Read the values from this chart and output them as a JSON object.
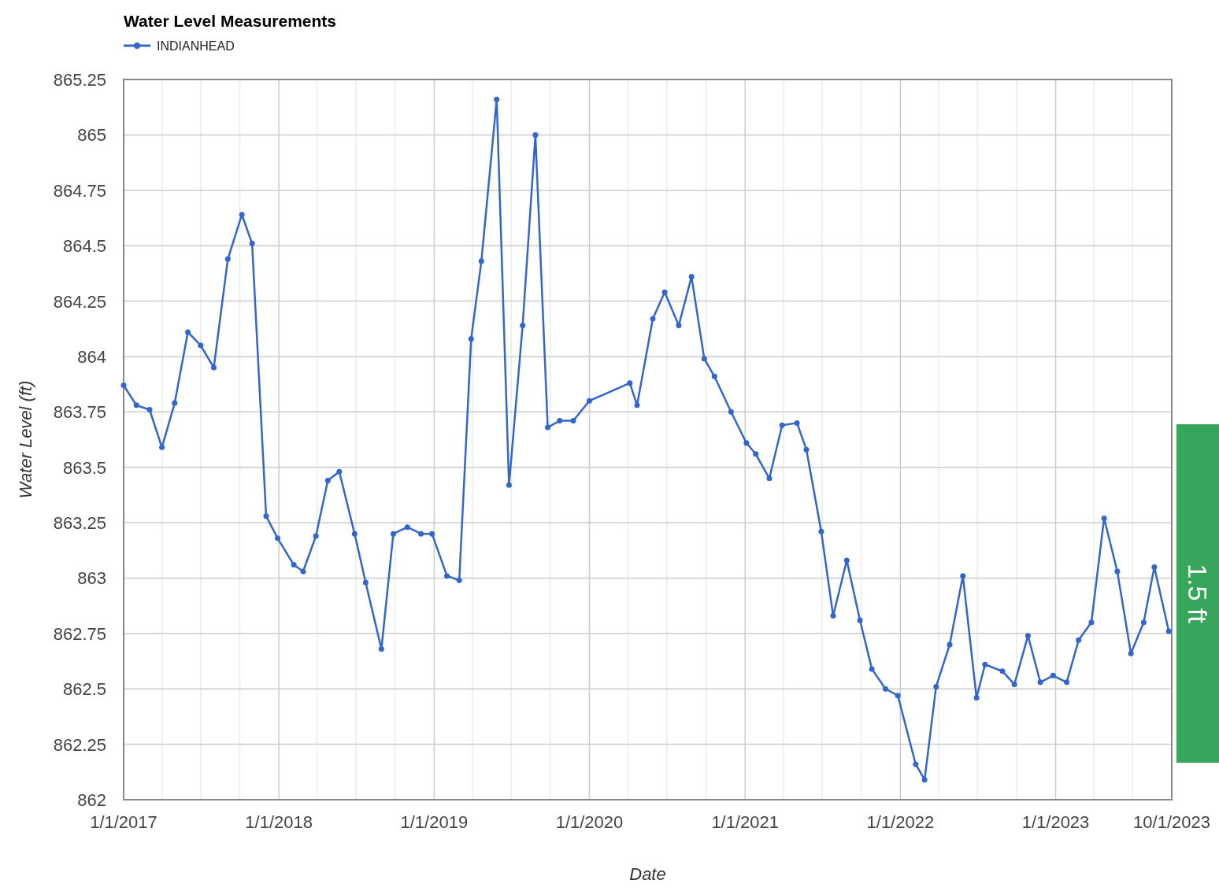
{
  "chart_data": {
    "type": "line",
    "title": "Water Level Measurements",
    "xlabel": "Date",
    "ylabel": "Water Level (ft)",
    "annotations": [
      "1.5 ft"
    ],
    "x": [
      "2017-01-01",
      "2017-01-31",
      "2017-03-03",
      "2017-04-01",
      "2017-05-01",
      "2017-06-01",
      "2017-07-01",
      "2017-08-01",
      "2017-09-03",
      "2017-10-06",
      "2017-10-30",
      "2017-12-02",
      "2017-12-29",
      "2018-02-05",
      "2018-02-27",
      "2018-03-29",
      "2018-04-26",
      "2018-05-23",
      "2018-06-28",
      "2018-07-24",
      "2018-08-30",
      "2018-09-27",
      "2018-10-30",
      "2018-12-01",
      "2018-12-27",
      "2019-01-31",
      "2019-03-01",
      "2019-03-29",
      "2019-04-22",
      "2019-05-28",
      "2019-06-26",
      "2019-07-28",
      "2019-08-27",
      "2019-09-25",
      "2019-10-23",
      "2019-11-24",
      "2020-01-01",
      "2020-04-05",
      "2020-04-22",
      "2020-05-29",
      "2020-06-26",
      "2020-07-29",
      "2020-08-28",
      "2020-09-27",
      "2020-10-21",
      "2020-11-29",
      "2021-01-04",
      "2021-01-26",
      "2021-02-27",
      "2021-03-29",
      "2021-05-03",
      "2021-05-25",
      "2021-06-29",
      "2021-07-27",
      "2021-08-28",
      "2021-09-28",
      "2021-10-26",
      "2021-11-27",
      "2021-12-26",
      "2022-02-06",
      "2022-02-27",
      "2022-03-26",
      "2022-04-27",
      "2022-05-28",
      "2022-06-29",
      "2022-07-19",
      "2022-08-29",
      "2022-09-26",
      "2022-10-28",
      "2022-11-26",
      "2022-12-26",
      "2023-01-27",
      "2023-02-24",
      "2023-03-26",
      "2023-04-25",
      "2023-05-26",
      "2023-06-27",
      "2023-07-27",
      "2023-08-21",
      "2023-09-24"
    ],
    "series": [
      {
        "name": "INDIANHEAD",
        "color": "#3366cc",
        "values": [
          863.87,
          863.78,
          863.76,
          863.59,
          863.79,
          864.11,
          864.05,
          863.95,
          864.44,
          864.64,
          864.51,
          863.28,
          863.18,
          863.06,
          863.03,
          863.19,
          863.44,
          863.48,
          863.2,
          862.98,
          862.68,
          863.2,
          863.23,
          863.2,
          863.2,
          863.01,
          862.99,
          864.08,
          864.43,
          865.16,
          863.42,
          864.14,
          865.0,
          863.68,
          863.71,
          863.71,
          863.8,
          863.88,
          863.78,
          864.17,
          864.29,
          864.14,
          864.36,
          863.99,
          863.91,
          863.75,
          863.61,
          863.56,
          863.45,
          863.69,
          863.7,
          863.58,
          863.21,
          862.83,
          863.08,
          862.81,
          862.59,
          862.5,
          862.47,
          862.16,
          862.09,
          862.51,
          862.7,
          863.01,
          862.46,
          862.61,
          862.58,
          862.52,
          862.74,
          862.53,
          862.56,
          862.53,
          862.72,
          862.8,
          863.27,
          863.03,
          862.66,
          862.8,
          863.05,
          862.76
        ]
      }
    ],
    "xlim": [
      "2017-01-01",
      "2023-10-01"
    ],
    "xticks": [
      {
        "value": "2017-01-01",
        "label": "1/1/2017"
      },
      {
        "value": "2017-04-01",
        "label": null
      },
      {
        "value": "2017-07-01",
        "label": null
      },
      {
        "value": "2017-10-01",
        "label": null
      },
      {
        "value": "2018-01-01",
        "label": "1/1/2018"
      },
      {
        "value": "2018-04-01",
        "label": null
      },
      {
        "value": "2018-07-01",
        "label": null
      },
      {
        "value": "2018-10-01",
        "label": null
      },
      {
        "value": "2019-01-01",
        "label": "1/1/2019"
      },
      {
        "value": "2019-04-01",
        "label": null
      },
      {
        "value": "2019-07-01",
        "label": null
      },
      {
        "value": "2019-10-01",
        "label": null
      },
      {
        "value": "2020-01-01",
        "label": "1/1/2020"
      },
      {
        "value": "2020-04-01",
        "label": null
      },
      {
        "value": "2020-07-01",
        "label": null
      },
      {
        "value": "2020-10-01",
        "label": null
      },
      {
        "value": "2021-01-01",
        "label": "1/1/2021"
      },
      {
        "value": "2021-04-01",
        "label": null
      },
      {
        "value": "2021-07-01",
        "label": null
      },
      {
        "value": "2021-10-01",
        "label": null
      },
      {
        "value": "2022-01-01",
        "label": "1/1/2022"
      },
      {
        "value": "2022-04-01",
        "label": null
      },
      {
        "value": "2022-07-01",
        "label": null
      },
      {
        "value": "2022-10-01",
        "label": null
      },
      {
        "value": "2023-01-01",
        "label": "1/1/2023"
      },
      {
        "value": "2023-04-01",
        "label": null
      },
      {
        "value": "2023-07-01",
        "label": null
      },
      {
        "value": "2023-10-01",
        "label": "10/1/2023"
      }
    ],
    "ylim": [
      862,
      865.25
    ],
    "yticks": [
      862,
      862.25,
      862.5,
      862.75,
      863,
      863.25,
      863.5,
      863.75,
      864,
      864.25,
      864.5,
      864.75,
      865,
      865.25
    ],
    "grid": true,
    "legend": "top left",
    "marker": "circle",
    "line_style": "solid"
  }
}
